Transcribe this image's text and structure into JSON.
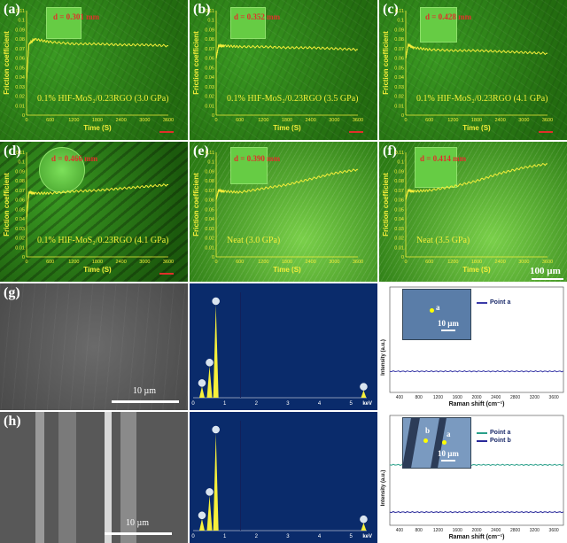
{
  "panels": {
    "a": {
      "label": "(a)",
      "d": "d = 0.301 mm",
      "note": "0.1% HIF-MoS₂/0.23RGO (3.0 GPa)"
    },
    "b": {
      "label": "(b)",
      "d": "d = 0.352 mm",
      "note": "0.1% HIF-MoS₂/0.23RGO (3.5 GPa)"
    },
    "c": {
      "label": "(c)",
      "d": "d = 0.428 mm",
      "note": "0.1% HIF-MoS₂/0.23RGO (4.1 GPa)"
    },
    "d": {
      "label": "(d)",
      "d": "d = 0.466 mm",
      "note": "0.1% HIF-MoS₂/0.23RGO (4.1 GPa)"
    },
    "e": {
      "label": "(e)",
      "d": "d = 0.390 mm",
      "note": "Neat (3.0 GPa)"
    },
    "f": {
      "label": "(f)",
      "d": "d = 0.414 mm",
      "note": "Neat (3.5 GPa)",
      "scalebar": "100 µm"
    },
    "g": {
      "label": "(g)",
      "sem_scale": "10 µm",
      "inset_scale": "10 µm",
      "point_marker": "a",
      "legend": [
        "Point a"
      ]
    },
    "h": {
      "label": "(h)",
      "sem_scale": "10 µm",
      "inset_scale": "10 µm",
      "point_markers": [
        "b",
        "a"
      ],
      "legend": [
        "Point a",
        "Point b"
      ]
    }
  },
  "friction_axes": {
    "ylabel": "Friction coefficient",
    "xlabel": "Time (S)",
    "yticks": [
      "0",
      "0.01",
      "0.02",
      "0.03",
      "0.04",
      "0.05",
      "0.06",
      "0.07",
      "0.08",
      "0.09",
      "0.1",
      "0.11"
    ],
    "xticks": [
      "0",
      "600",
      "1200",
      "1800",
      "2400",
      "3000",
      "3600"
    ]
  },
  "eds_axes": {
    "xticks": [
      "0",
      "1",
      "2",
      "3",
      "4",
      "5"
    ],
    "xunit": "keV"
  },
  "raman_axes": {
    "ylabel": "Intensity (a.u.)",
    "xlabel": "Raman shift (cm⁻¹)",
    "xticks": [
      "400",
      "800",
      "1200",
      "1600",
      "2000",
      "2400",
      "2800",
      "3200",
      "3600"
    ]
  },
  "colors": {
    "trace": "#f3ee3a",
    "series_a_h": "#2aa08a",
    "series_b_h": "#2a2a9a",
    "series_g": "#3b3ba8",
    "eds_bar": "#f7f03a"
  },
  "chart_data": [
    {
      "type": "line",
      "ylim": [
        0,
        0.11
      ],
      "xlim": [
        0,
        3600
      ],
      "series": [
        {
          "x": [
            0,
            60,
            200,
            600,
            1200,
            1800,
            2400,
            3000,
            3600
          ],
          "values": [
            0.035,
            0.075,
            0.08,
            0.077,
            0.075,
            0.075,
            0.074,
            0.074,
            0.073
          ]
        }
      ]
    },
    {
      "type": "line",
      "ylim": [
        0,
        0.11
      ],
      "xlim": [
        0,
        3600
      ],
      "series": [
        {
          "x": [
            0,
            60,
            200,
            600,
            1200,
            1800,
            2400,
            3000,
            3600
          ],
          "values": [
            0.06,
            0.073,
            0.073,
            0.072,
            0.072,
            0.071,
            0.071,
            0.07,
            0.069
          ]
        }
      ]
    },
    {
      "type": "line",
      "ylim": [
        0,
        0.11
      ],
      "xlim": [
        0,
        3600
      ],
      "series": [
        {
          "x": [
            0,
            60,
            200,
            600,
            1200,
            1800,
            2400,
            3000,
            3600
          ],
          "values": [
            0.06,
            0.074,
            0.071,
            0.069,
            0.068,
            0.068,
            0.067,
            0.066,
            0.065
          ]
        }
      ]
    },
    {
      "type": "line",
      "ylim": [
        0,
        0.11
      ],
      "xlim": [
        0,
        3600
      ],
      "series": [
        {
          "x": [
            0,
            60,
            200,
            600,
            1200,
            1800,
            2400,
            3000,
            3600
          ],
          "values": [
            0.04,
            0.068,
            0.067,
            0.067,
            0.069,
            0.07,
            0.072,
            0.074,
            0.076
          ]
        }
      ]
    },
    {
      "type": "line",
      "ylim": [
        0,
        0.11
      ],
      "xlim": [
        0,
        3600
      ],
      "series": [
        {
          "x": [
            0,
            60,
            200,
            600,
            1200,
            1800,
            2400,
            3000,
            3600
          ],
          "values": [
            0.06,
            0.07,
            0.069,
            0.068,
            0.072,
            0.076,
            0.082,
            0.088,
            0.092
          ]
        }
      ]
    },
    {
      "type": "line",
      "ylim": [
        0,
        0.11
      ],
      "xlim": [
        0,
        3600
      ],
      "series": [
        {
          "x": [
            0,
            60,
            200,
            600,
            1200,
            1800,
            2400,
            3000,
            3600
          ],
          "values": [
            0.06,
            0.07,
            0.069,
            0.07,
            0.074,
            0.08,
            0.088,
            0.094,
            0.098
          ]
        }
      ]
    },
    {
      "type": "bar",
      "xlim": [
        0,
        5.5
      ],
      "categories": [
        "0.28",
        "0.52",
        "0.72",
        "5.4"
      ],
      "values": [
        0.12,
        0.34,
        1.0,
        0.08
      ]
    },
    {
      "type": "bar",
      "xlim": [
        0,
        5.5
      ],
      "categories": [
        "0.28",
        "0.52",
        "0.72",
        "5.4"
      ],
      "values": [
        0.12,
        0.36,
        1.0,
        0.08
      ]
    }
  ]
}
